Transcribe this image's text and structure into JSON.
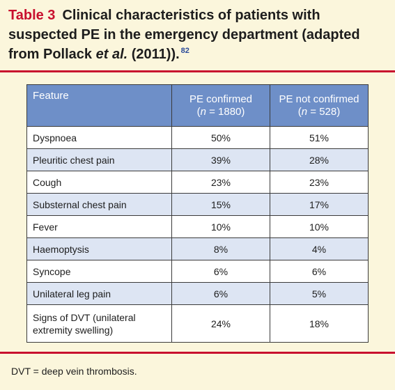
{
  "title": {
    "label": "Table 3",
    "text_line1": "Clinical characteristics of patients with",
    "text_line2": "suspected PE in the emergency department (adapted",
    "text_line3a": "from Pollack ",
    "text_line3_italic": "et al.",
    "text_line3b": " (2011)).",
    "ref": "82"
  },
  "colors": {
    "title_label": "#c8102e",
    "rule": "#c8102e",
    "header_bg": "#6e8fc8",
    "row_shade": "#dde5f3",
    "panel_bg": "#fbf6dc",
    "ref_link": "#2a4a9a"
  },
  "table": {
    "headers": {
      "feature": "Feature",
      "col1_line1": "PE confirmed",
      "col1_open": "(",
      "col1_n": "n",
      "col1_rest": " = 1880)",
      "col2_line1": "PE not confirmed",
      "col2_open": "(",
      "col2_n": "n",
      "col2_rest": " = 528)"
    },
    "rows": [
      {
        "feature": "Dyspnoea",
        "confirmed": "50%",
        "not_confirmed": "51%"
      },
      {
        "feature": "Pleuritic chest pain",
        "confirmed": "39%",
        "not_confirmed": "28%"
      },
      {
        "feature": "Cough",
        "confirmed": "23%",
        "not_confirmed": "23%"
      },
      {
        "feature": "Substernal chest pain",
        "confirmed": "15%",
        "not_confirmed": "17%"
      },
      {
        "feature": "Fever",
        "confirmed": "10%",
        "not_confirmed": "10%"
      },
      {
        "feature": "Haemoptysis",
        "confirmed": "8%",
        "not_confirmed": "4%"
      },
      {
        "feature": "Syncope",
        "confirmed": "6%",
        "not_confirmed": "6%"
      },
      {
        "feature": "Unilateral leg pain",
        "confirmed": "6%",
        "not_confirmed": "5%"
      },
      {
        "feature_line1": "Signs of DVT (unilateral",
        "feature_line2": "extremity swelling)",
        "confirmed": "24%",
        "not_confirmed": "18%"
      }
    ]
  },
  "footnote": "DVT = deep vein thrombosis."
}
